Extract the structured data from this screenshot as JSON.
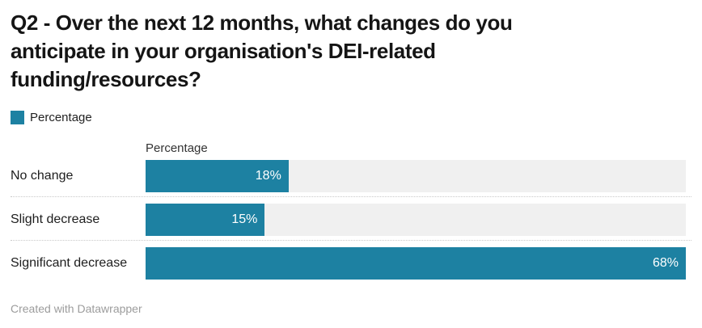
{
  "header": {
    "title": "Q2 - Over the next 12 months, what changes do you anticipate in your organisation's DEI-related funding/resources?",
    "title_lines": [
      "Q2 - Over the next 12 months, what changes do you",
      "anticipate in your organisation's DEI-related",
      "funding/resources?"
    ]
  },
  "legend": {
    "label": "Percentage",
    "color": "#1d81a2"
  },
  "chart_data": {
    "type": "bar",
    "orientation": "horizontal",
    "title": "Q2 - Over the next 12 months, what changes do you anticipate in your organisation's DEI-related funding/resources?",
    "column_header": "Percentage",
    "categories": [
      "No change",
      "Slight decrease",
      "Significant decrease"
    ],
    "values": [
      18,
      15,
      68
    ],
    "value_labels": [
      "18%",
      "15%",
      "68%"
    ],
    "xlim": [
      0,
      68
    ],
    "legend_entries": [
      "Percentage"
    ],
    "legend_position": "top-left",
    "grid": false,
    "bar_color": "#1d81a2",
    "track_color": "#f0f0f0",
    "value_label_position": "inside-end"
  },
  "footer": {
    "credit": "Created with Datawrapper"
  }
}
